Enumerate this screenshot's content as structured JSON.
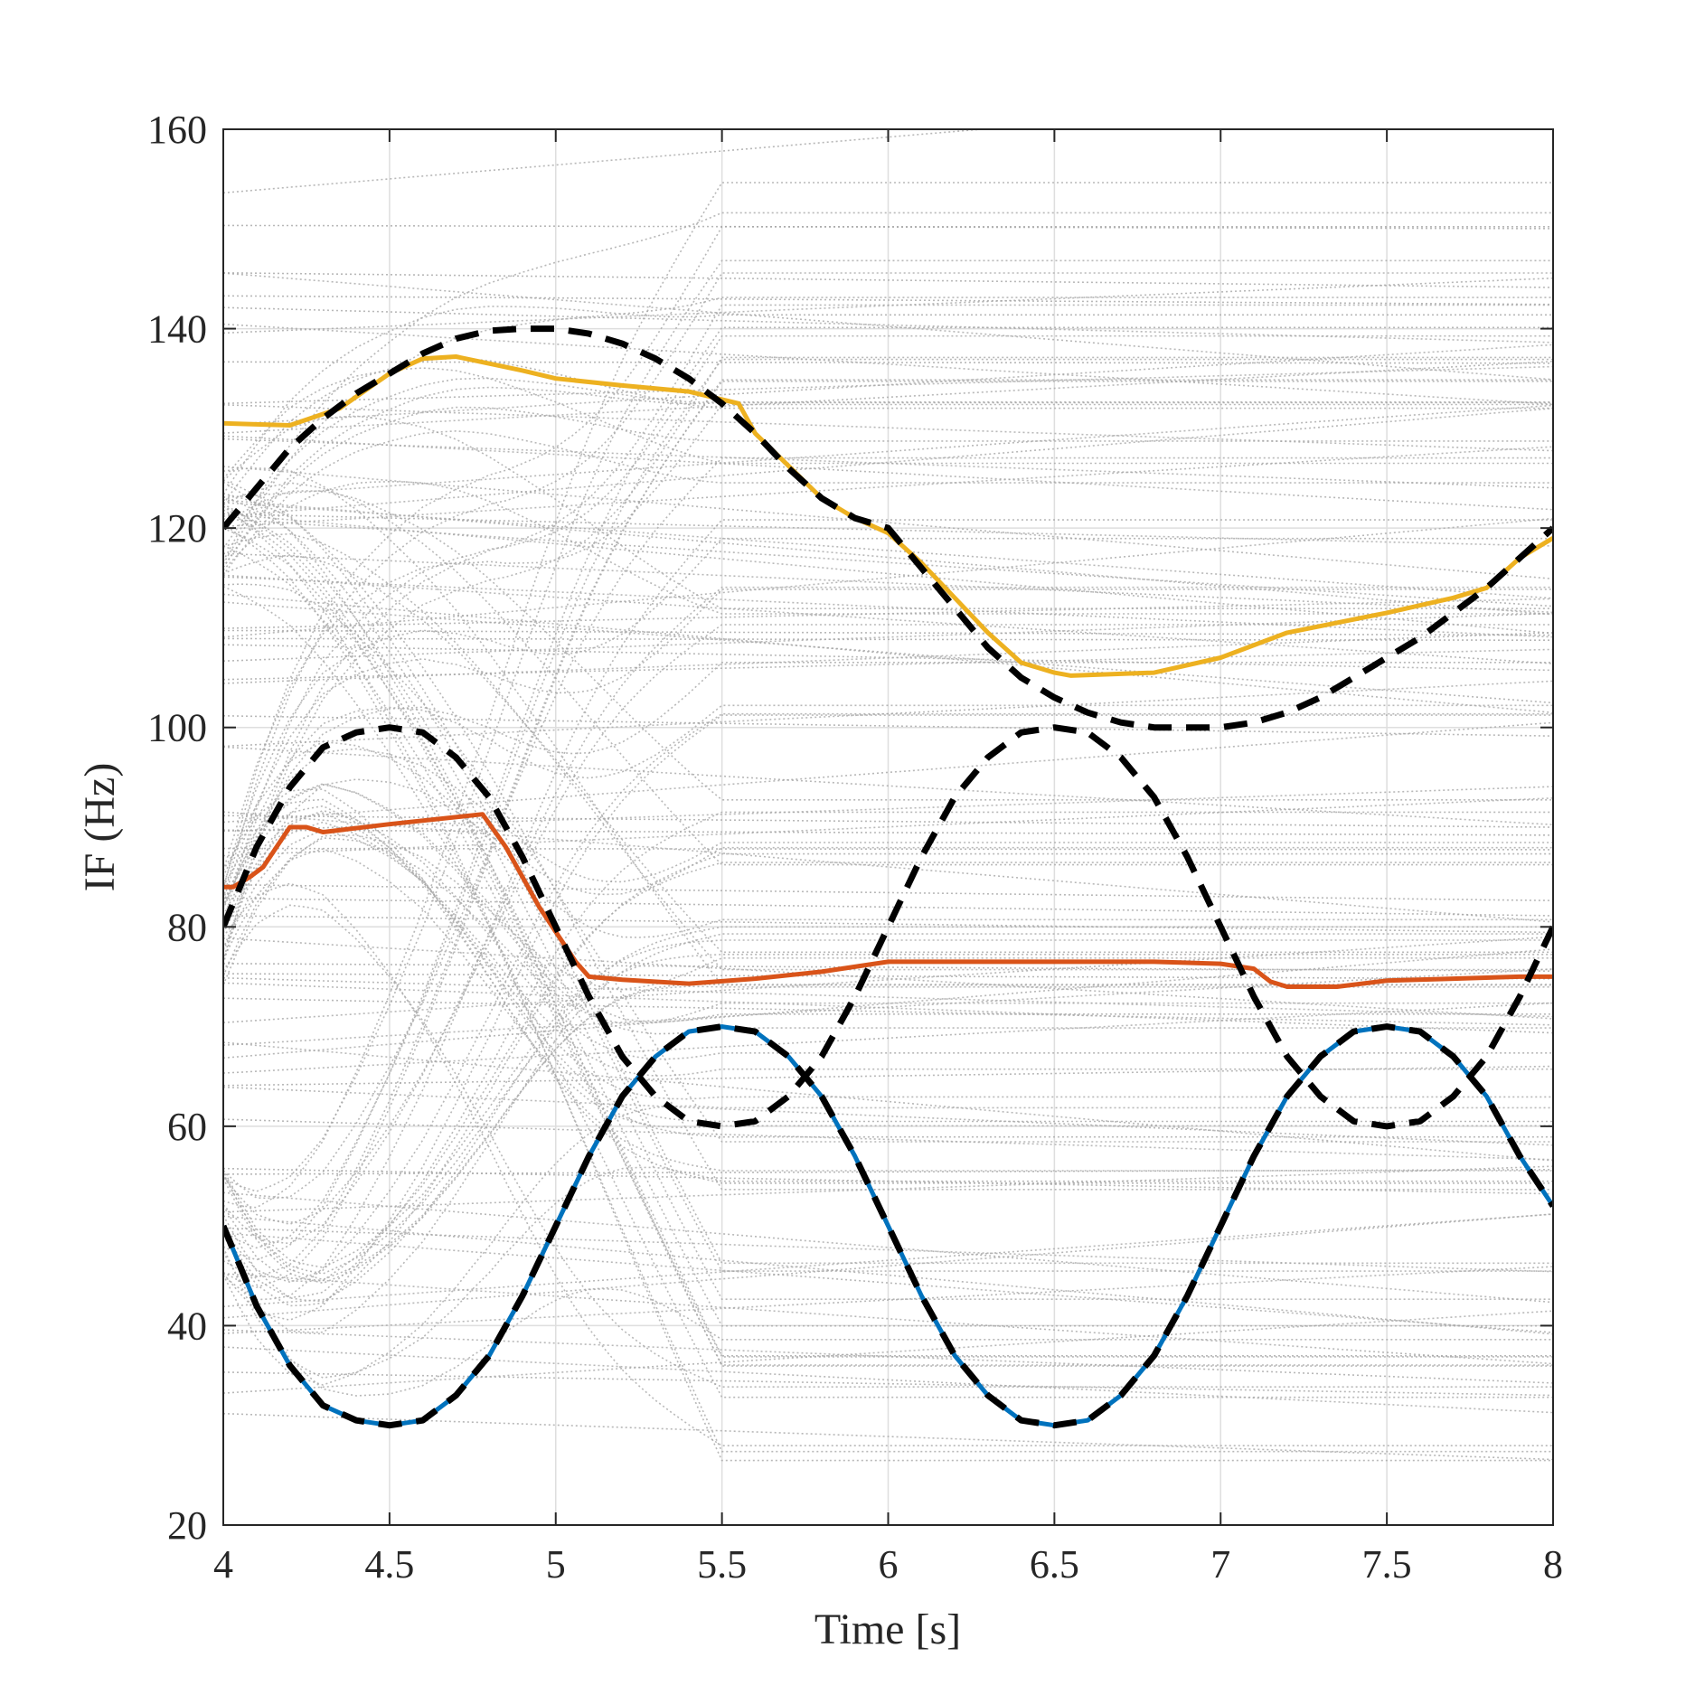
{
  "chart_data": {
    "type": "line",
    "title": "",
    "xlabel": "Time [s]",
    "ylabel": "IF (Hz)",
    "xlim": [
      4,
      8
    ],
    "ylim": [
      20,
      160
    ],
    "xticks": [
      4,
      4.5,
      5,
      5.5,
      6,
      6.5,
      7,
      7.5,
      8
    ],
    "xtick_labels": [
      "4",
      "4.5",
      "5",
      "5.5",
      "6",
      "6.5",
      "7",
      "7.5",
      "8"
    ],
    "yticks": [
      20,
      40,
      60,
      80,
      100,
      120,
      140,
      160
    ],
    "ytick_labels": [
      "20",
      "40",
      "60",
      "80",
      "100",
      "120",
      "140",
      "160"
    ],
    "grid": true,
    "legend": "none",
    "colors": {
      "ensemble": "#a6a6a6",
      "true_if": "#000000",
      "blue": "#0072bd",
      "orange": "#d95319",
      "yellow": "#edb120",
      "axes": "#262626",
      "grid": "#dedede"
    },
    "series": [
      {
        "style": "dashed-black",
        "x": [
          4.0,
          4.1,
          4.2,
          4.3,
          4.4,
          4.5,
          4.6,
          4.7,
          4.8,
          4.9,
          5.0,
          5.1,
          5.2,
          5.3,
          5.4,
          5.5,
          5.6,
          5.7,
          5.8,
          5.9,
          6.0,
          6.1,
          6.2,
          6.3,
          6.4,
          6.5,
          6.6,
          6.7,
          6.8,
          6.9,
          7.0,
          7.1,
          7.2,
          7.3,
          7.4,
          7.5,
          7.6,
          7.7,
          7.8,
          7.9,
          8.0
        ],
        "values": [
          50,
          42,
          36,
          32,
          30.5,
          30,
          30.5,
          33,
          37,
          43,
          50,
          57,
          63,
          67,
          69.5,
          70,
          69.5,
          67,
          63,
          57,
          50,
          43,
          37,
          33,
          30.5,
          30,
          30.5,
          33,
          37,
          43,
          50,
          57,
          63,
          67,
          69.5,
          70,
          69.5,
          67,
          63,
          57,
          52
        ]
      },
      {
        "style": "dashed-black",
        "x": [
          4.0,
          4.1,
          4.2,
          4.3,
          4.4,
          4.5,
          4.6,
          4.7,
          4.8,
          4.9,
          5.0,
          5.1,
          5.2,
          5.3,
          5.4,
          5.5,
          5.6,
          5.7,
          5.8,
          5.9,
          6.0,
          6.1,
          6.2,
          6.3,
          6.4,
          6.5,
          6.6,
          6.7,
          6.8,
          6.9,
          7.0,
          7.1,
          7.2,
          7.3,
          7.4,
          7.5,
          7.6,
          7.7,
          7.8,
          7.9,
          8.0
        ],
        "values": [
          80,
          88,
          94,
          98,
          99.5,
          100,
          99.5,
          97,
          93,
          87,
          80,
          73,
          67,
          63,
          60.5,
          60,
          60.5,
          63,
          67,
          73,
          80,
          87,
          93,
          97,
          99.5,
          100,
          99.5,
          97,
          93,
          87,
          80,
          73,
          67,
          63,
          60.5,
          60,
          60.5,
          63,
          67,
          73,
          80
        ]
      },
      {
        "style": "dashed-black",
        "x": [
          4.0,
          4.1,
          4.2,
          4.3,
          4.4,
          4.5,
          4.6,
          4.7,
          4.8,
          4.9,
          5.0,
          5.1,
          5.2,
          5.3,
          5.4,
          5.5,
          5.6,
          5.7,
          5.8,
          5.9,
          6.0,
          6.1,
          6.2,
          6.3,
          6.4,
          6.5,
          6.6,
          6.7,
          6.8,
          6.9,
          7.0,
          7.1,
          7.2,
          7.3,
          7.4,
          7.5,
          7.6,
          7.7,
          7.8,
          7.9,
          8.0
        ],
        "values": [
          120,
          124,
          128,
          131,
          133.5,
          135.5,
          137.5,
          139,
          139.8,
          140,
          140,
          139.5,
          138.5,
          137,
          135,
          132.5,
          129.5,
          126,
          123,
          121,
          120,
          116,
          112,
          108,
          105,
          103,
          101.5,
          100.5,
          100,
          100,
          100,
          100.5,
          101.5,
          103,
          105,
          107,
          109,
          111.5,
          114,
          117,
          120
        ]
      },
      {
        "style": "solid-blue",
        "x": [
          4.0,
          4.1,
          4.2,
          4.3,
          4.4,
          4.5,
          4.6,
          4.7,
          4.8,
          4.9,
          5.0,
          5.1,
          5.2,
          5.3,
          5.4,
          5.5,
          5.6,
          5.7,
          5.8,
          5.9,
          6.0,
          6.1,
          6.2,
          6.3,
          6.4,
          6.5,
          6.6,
          6.7,
          6.8,
          6.9,
          7.0,
          7.1,
          7.2,
          7.3,
          7.4,
          7.5,
          7.6,
          7.7,
          7.8,
          7.9,
          8.0
        ],
        "values": [
          50,
          42,
          36,
          32,
          30.5,
          30,
          30.5,
          33,
          37,
          43,
          50,
          57,
          63,
          67,
          69.5,
          70,
          69.5,
          67,
          63,
          57,
          50,
          43,
          37,
          33,
          30.5,
          30,
          30.5,
          33,
          37,
          43,
          50,
          57,
          63,
          67,
          69.5,
          70,
          69.5,
          67,
          63,
          57,
          52
        ]
      },
      {
        "style": "solid-orange",
        "x": [
          4.0,
          4.03,
          4.08,
          4.12,
          4.2,
          4.25,
          4.3,
          4.5,
          4.78,
          4.85,
          4.95,
          5.06,
          5.1,
          5.2,
          5.4,
          5.6,
          5.8,
          6.0,
          6.2,
          6.5,
          6.8,
          7.0,
          7.1,
          7.15,
          7.2,
          7.35,
          7.5,
          7.7,
          7.9,
          8.0
        ],
        "values": [
          84,
          84,
          85,
          86,
          90,
          90,
          89.5,
          90.3,
          91.3,
          88,
          82,
          76.5,
          75,
          74.7,
          74.3,
          74.8,
          75.5,
          76.5,
          76.5,
          76.5,
          76.5,
          76.3,
          75.8,
          74.5,
          74,
          74,
          74.6,
          74.8,
          75,
          75
        ]
      },
      {
        "style": "solid-yellow",
        "x": [
          4.0,
          4.2,
          4.35,
          4.5,
          4.6,
          4.7,
          4.8,
          4.9,
          5.0,
          5.2,
          5.4,
          5.55,
          5.6,
          5.8,
          5.9,
          6.0,
          6.1,
          6.2,
          6.3,
          6.4,
          6.5,
          6.55,
          6.8,
          7.0,
          7.2,
          7.5,
          7.7,
          7.8,
          7.9,
          8.0
        ],
        "values": [
          130.5,
          130.3,
          132,
          135.5,
          137,
          137.2,
          136.5,
          135.8,
          135,
          134.3,
          133.7,
          132.5,
          129.5,
          123,
          121,
          119.5,
          116.5,
          113,
          109.5,
          106.5,
          105.5,
          105.2,
          105.5,
          107,
          109.5,
          111.5,
          113,
          114,
          117,
          119
        ]
      }
    ]
  }
}
